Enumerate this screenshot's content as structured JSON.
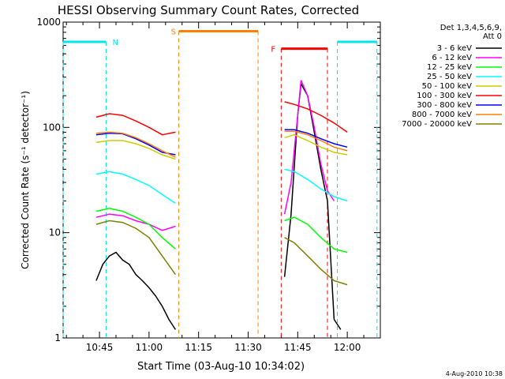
{
  "chart_data": {
    "type": "line",
    "title": "HESSI Observing Summary Count Rates, Corrected",
    "xlabel": "Start Time (03-Aug-10 10:34:02)",
    "ylabel": "Corrected Count Rate (s⁻¹ detector⁻¹)",
    "y_scale": "log",
    "ylim": [
      1,
      1000
    ],
    "xlim": [
      "10:34",
      "12:10"
    ],
    "x_ticks": [
      "10:45",
      "11:00",
      "11:15",
      "11:30",
      "11:45",
      "12:00"
    ],
    "y_ticks": [
      "1",
      "10",
      "100",
      "1000"
    ],
    "legend": {
      "placement": "right",
      "header_lines": [
        "Det 1,3,4,5,6,9,",
        "Att 0"
      ]
    },
    "timestamp": "4-Aug-2010 10:38",
    "flags": [
      {
        "label": "N",
        "color": "#00e5e5",
        "segments": [
          [
            "10:34",
            "10:47"
          ],
          [
            "11:57",
            "12:09"
          ]
        ]
      },
      {
        "label": "S",
        "color": "#ff8000",
        "segments": [
          [
            "11:09",
            "11:33"
          ]
        ]
      },
      {
        "label": "F",
        "color": "#ff0000",
        "segments": [
          [
            "11:40",
            "11:54"
          ]
        ]
      }
    ],
    "series": [
      {
        "name": "3 - 6 keV",
        "color": "#000000",
        "x": [
          "10:44",
          "10:46",
          "10:48",
          "10:50",
          "10:52",
          "10:54",
          "10:56",
          "10:58",
          "11:00",
          "11:02",
          "11:04",
          "11:06",
          "11:08",
          "11:41",
          "11:43",
          "11:45",
          "11:46",
          "11:48",
          "11:50",
          "11:52",
          "11:54",
          "11:56",
          "11:58"
        ],
        "y": [
          3.5,
          5,
          6,
          6.5,
          5.5,
          5,
          4,
          3.5,
          3,
          2.5,
          2,
          1.5,
          1.2,
          3.8,
          15,
          130,
          260,
          200,
          90,
          40,
          20,
          1.5,
          1.2
        ]
      },
      {
        "name": "6 - 12 keV",
        "color": "#ff00ff",
        "x": [
          "10:44",
          "10:48",
          "10:52",
          "10:56",
          "11:00",
          "11:04",
          "11:08",
          "11:41",
          "11:43",
          "11:45",
          "11:46",
          "11:48",
          "11:50",
          "11:52",
          "11:54",
          "11:56"
        ],
        "y": [
          14,
          15,
          14.5,
          13,
          12,
          10.5,
          11.5,
          15,
          30,
          130,
          280,
          200,
          100,
          45,
          25,
          20
        ]
      },
      {
        "name": "12 - 25 keV",
        "color": "#00ff00",
        "x": [
          "10:44",
          "10:48",
          "10:52",
          "10:56",
          "11:00",
          "11:04",
          "11:08",
          "11:41",
          "11:44",
          "11:48",
          "11:52",
          "11:56",
          "12:00"
        ],
        "y": [
          16,
          17,
          16,
          14,
          12,
          9,
          7,
          13,
          14,
          12,
          9,
          7,
          6.5
        ]
      },
      {
        "name": "25 - 50 keV",
        "color": "#00ffff",
        "x": [
          "10:44",
          "10:48",
          "10:52",
          "10:56",
          "11:00",
          "11:04",
          "11:08",
          "11:41",
          "11:44",
          "11:48",
          "11:52",
          "11:56",
          "12:00"
        ],
        "y": [
          36,
          38,
          36,
          32,
          28,
          23,
          19,
          40,
          38,
          32,
          26,
          22,
          20
        ]
      },
      {
        "name": "50 - 100 keV",
        "color": "#cccc00",
        "x": [
          "10:44",
          "10:48",
          "10:52",
          "10:56",
          "11:00",
          "11:04",
          "11:08",
          "11:41",
          "11:44",
          "11:48",
          "11:52",
          "11:56",
          "12:00"
        ],
        "y": [
          72,
          75,
          75,
          70,
          63,
          55,
          50,
          80,
          85,
          75,
          65,
          58,
          55
        ]
      },
      {
        "name": "100 - 300 keV",
        "color": "#ff0000",
        "x": [
          "10:44",
          "10:48",
          "10:52",
          "10:56",
          "11:00",
          "11:04",
          "11:08",
          "11:41",
          "11:44",
          "11:48",
          "11:52",
          "11:56",
          "12:00"
        ],
        "y": [
          125,
          135,
          130,
          115,
          100,
          85,
          90,
          175,
          165,
          150,
          130,
          110,
          90
        ]
      },
      {
        "name": "300 - 800 keV",
        "color": "#0000ff",
        "x": [
          "10:44",
          "10:48",
          "10:52",
          "10:56",
          "11:00",
          "11:04",
          "11:08",
          "11:41",
          "11:44",
          "11:48",
          "11:52",
          "11:56",
          "12:00"
        ],
        "y": [
          85,
          88,
          87,
          78,
          68,
          58,
          55,
          95,
          95,
          88,
          78,
          70,
          65
        ]
      },
      {
        "name": "800 - 7000 keV",
        "color": "#ff8000",
        "x": [
          "10:44",
          "10:48",
          "10:52",
          "10:56",
          "11:00",
          "11:04",
          "11:08",
          "11:41",
          "11:44",
          "11:48",
          "11:52",
          "11:56",
          "12:00"
        ],
        "y": [
          88,
          90,
          88,
          80,
          70,
          60,
          52,
          92,
          92,
          85,
          75,
          65,
          60
        ]
      },
      {
        "name": "7000 - 20000 keV",
        "color": "#808000",
        "x": [
          "10:44",
          "10:48",
          "10:52",
          "10:56",
          "11:00",
          "11:04",
          "11:08",
          "11:41",
          "11:44",
          "11:48",
          "11:52",
          "11:56",
          "12:00"
        ],
        "y": [
          12,
          13,
          12.5,
          11,
          9,
          6,
          4,
          9,
          8,
          6,
          4.5,
          3.5,
          3.2
        ]
      }
    ]
  }
}
